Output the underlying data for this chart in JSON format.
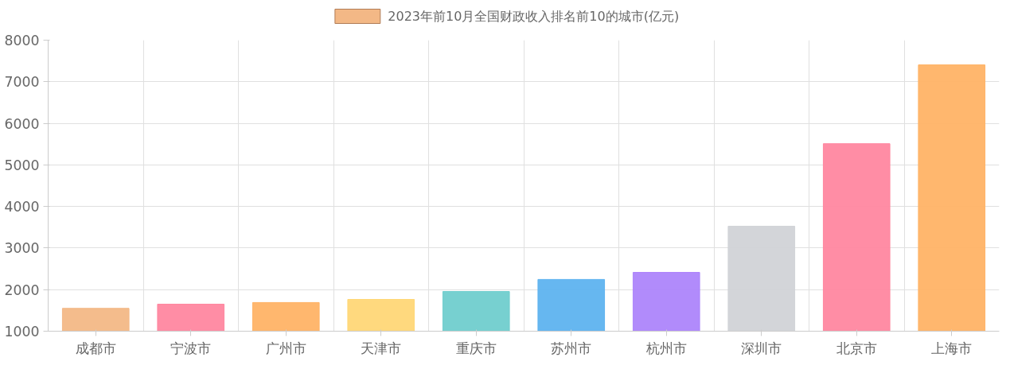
{
  "chart_data": {
    "type": "bar",
    "categories": [
      "成都市",
      "宁波市",
      "广州市",
      "天津市",
      "重庆市",
      "苏州市",
      "杭州市",
      "深圳市",
      "北京市",
      "上海市"
    ],
    "series": [
      {
        "name": "2023年前10月全国财政收入排名前10的城市(亿元)",
        "values": [
          1550,
          1650,
          1690,
          1765,
          1955,
          2245,
          2415,
          3525,
          5510,
          7405
        ],
        "colors": [
          "#f3b886",
          "#ff87a0",
          "#ffb366",
          "#ffd777",
          "#70cdcd",
          "#5eb3ef",
          "#ad85fb",
          "#d1d3d7",
          "#ff87a0",
          "#ffb366"
        ]
      }
    ],
    "ylim": [
      1000,
      8000
    ],
    "yticks": [
      1000,
      2000,
      3000,
      4000,
      5000,
      6000,
      7000,
      8000
    ],
    "grid": true,
    "legend": "top"
  }
}
